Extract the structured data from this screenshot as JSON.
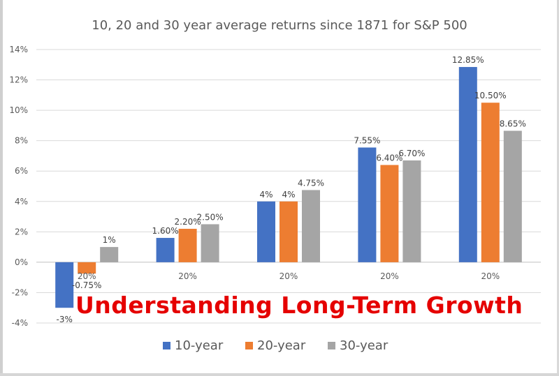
{
  "overlay_caption": "Understanding Long-Term Growth",
  "chart_data": {
    "type": "bar",
    "title": "10, 20 and 30 year average returns since 1871 for S&P 500",
    "xlabel": "",
    "ylabel": "",
    "ylim": [
      -4,
      14
    ],
    "y_ticks": [
      -4,
      -2,
      0,
      2,
      4,
      6,
      8,
      10,
      12,
      14
    ],
    "y_tick_labels": [
      "-4%",
      "-2%",
      "0%",
      "2%",
      "4%",
      "6%",
      "8%",
      "10%",
      "12%",
      "14%"
    ],
    "categories": [
      "20%",
      "20%",
      "20%",
      "20%",
      "20%"
    ],
    "grid": true,
    "legend_position": "bottom",
    "series": [
      {
        "name": "10-year",
        "color": "#4472c4",
        "values": [
          -3,
          1.6,
          4,
          7.55,
          12.85
        ],
        "labels": [
          "-3%",
          "1.60%",
          "4%",
          "7.55%",
          "12.85%"
        ]
      },
      {
        "name": "20-year",
        "color": "#ed7d31",
        "values": [
          -0.75,
          2.2,
          4,
          6.4,
          10.5
        ],
        "labels": [
          "-0.75%",
          "2.20%",
          "4%",
          "6.40%",
          "10.50%"
        ]
      },
      {
        "name": "30-year",
        "color": "#a5a5a5",
        "values": [
          1,
          2.5,
          4.75,
          6.7,
          8.65
        ],
        "labels": [
          "1%",
          "2.50%",
          "4.75%",
          "6.70%",
          "8.65%"
        ]
      }
    ]
  }
}
